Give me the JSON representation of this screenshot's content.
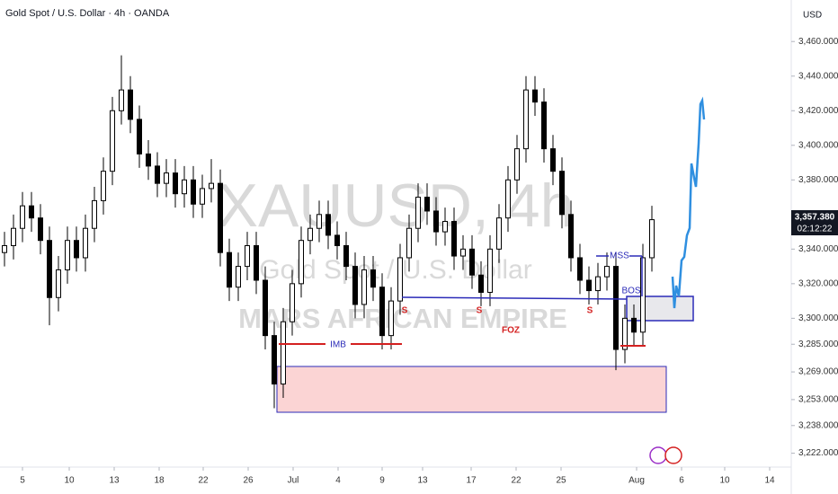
{
  "chart_data": {
    "type": "candlestick",
    "title": "Gold Spot / U.S. Dollar · 4h · OANDA",
    "currency": "USD",
    "watermark": {
      "symbol": "XAUUSD, 4h",
      "name": "Gold Spot / U.S. Dollar",
      "author": "MARS AFRICAN EMPIRE"
    },
    "annotations": {
      "imb": "IMB",
      "mss": "MSS",
      "bos": "BOS",
      "s": [
        "S",
        "S",
        "S"
      ],
      "foz": "FOZ"
    },
    "last_price_label": "3,357.380",
    "countdown": "02:12:22",
    "color": "#000000",
    "open": [
      3338,
      3342,
      3352,
      3365,
      3358,
      3345,
      3312,
      3328,
      3345,
      3335,
      3352,
      3368,
      3385,
      3420,
      3432,
      3415,
      3395,
      3388,
      3378,
      3384,
      3372,
      3380,
      3366,
      3375,
      3378,
      3338,
      3318,
      3330,
      3342,
      3322,
      3290,
      3262,
      3298,
      3320,
      3345,
      3352,
      3360,
      3348,
      3342,
      3330,
      3308,
      3328,
      3318,
      3290,
      3310,
      3335,
      3352,
      3370,
      3362,
      3350,
      3356,
      3336,
      3340,
      3325,
      3315,
      3340,
      3358,
      3380,
      3398,
      3432,
      3425,
      3398,
      3385,
      3360,
      3335,
      3322,
      3316,
      3324,
      3330,
      3282,
      3300,
      3292,
      3335
    ],
    "high": [
      3350,
      3360,
      3373,
      3373,
      3366,
      3353,
      3336,
      3353,
      3353,
      3360,
      3376,
      3393,
      3428,
      3452,
      3440,
      3423,
      3403,
      3396,
      3392,
      3392,
      3388,
      3388,
      3383,
      3392,
      3386,
      3346,
      3338,
      3350,
      3350,
      3330,
      3298,
      3306,
      3328,
      3353,
      3360,
      3368,
      3368,
      3356,
      3350,
      3338,
      3336,
      3336,
      3326,
      3318,
      3343,
      3360,
      3378,
      3378,
      3370,
      3364,
      3364,
      3348,
      3348,
      3333,
      3348,
      3366,
      3388,
      3406,
      3440,
      3440,
      3433,
      3406,
      3393,
      3368,
      3343,
      3330,
      3332,
      3338,
      3338,
      3308,
      3308,
      3343,
      3365
    ],
    "low": [
      3330,
      3334,
      3344,
      3350,
      3337,
      3296,
      3304,
      3320,
      3327,
      3327,
      3344,
      3360,
      3377,
      3412,
      3407,
      3387,
      3380,
      3370,
      3370,
      3364,
      3364,
      3358,
      3358,
      3367,
      3330,
      3310,
      3310,
      3322,
      3314,
      3282,
      3248,
      3254,
      3290,
      3312,
      3337,
      3344,
      3340,
      3334,
      3322,
      3300,
      3300,
      3310,
      3282,
      3282,
      3302,
      3327,
      3344,
      3354,
      3342,
      3342,
      3328,
      3328,
      3317,
      3307,
      3307,
      3332,
      3350,
      3372,
      3390,
      3417,
      3390,
      3377,
      3352,
      3327,
      3314,
      3308,
      3308,
      3316,
      3270,
      3274,
      3284,
      3284,
      3327
    ],
    "close": [
      3342,
      3352,
      3365,
      3358,
      3345,
      3312,
      3328,
      3345,
      3335,
      3352,
      3368,
      3385,
      3420,
      3432,
      3415,
      3395,
      3388,
      3378,
      3384,
      3372,
      3380,
      3366,
      3375,
      3378,
      3338,
      3318,
      3330,
      3342,
      3322,
      3290,
      3262,
      3298,
      3320,
      3345,
      3352,
      3360,
      3348,
      3342,
      3330,
      3308,
      3328,
      3318,
      3290,
      3310,
      3335,
      3352,
      3370,
      3362,
      3350,
      3356,
      3336,
      3340,
      3325,
      3315,
      3340,
      3358,
      3380,
      3398,
      3432,
      3425,
      3398,
      3385,
      3360,
      3335,
      3322,
      3316,
      3324,
      3330,
      3282,
      3300,
      3292,
      3335,
      3357
    ],
    "xlim": [
      -0.5,
      87.5
    ],
    "xticks": [
      {
        "value": 2,
        "label": "5"
      },
      {
        "value": 7.2,
        "label": "10"
      },
      {
        "value": 12.2,
        "label": "13"
      },
      {
        "value": 17.2,
        "label": "18"
      },
      {
        "value": 22.1,
        "label": "22"
      },
      {
        "value": 27.1,
        "label": "26"
      },
      {
        "value": 32.1,
        "label": "Jul"
      },
      {
        "value": 37.1,
        "label": "4"
      },
      {
        "value": 42,
        "label": "9"
      },
      {
        "value": 46.5,
        "label": "13"
      },
      {
        "value": 51.9,
        "label": "17"
      },
      {
        "value": 56.9,
        "label": "22"
      },
      {
        "value": 61.9,
        "label": "25"
      },
      {
        "value": 70.3,
        "label": "Aug"
      },
      {
        "value": 75.3,
        "label": "6"
      },
      {
        "value": 80.1,
        "label": "10"
      },
      {
        "value": 85.1,
        "label": "14"
      }
    ],
    "ylim": [
      3214,
      3484
    ],
    "yticks": [
      {
        "value": 3460,
        "label": "3,460.000"
      },
      {
        "value": 3440,
        "label": "3,440.000"
      },
      {
        "value": 3420,
        "label": "3,420.000"
      },
      {
        "value": 3400,
        "label": "3,400.000"
      },
      {
        "value": 3380,
        "label": "3,380.000"
      },
      {
        "value": 3340,
        "label": "3,340.000"
      },
      {
        "value": 3320,
        "label": "3,320.000"
      },
      {
        "value": 3300,
        "label": "3,300.000"
      },
      {
        "value": 3285,
        "label": "3,285.000"
      },
      {
        "value": 3269,
        "label": "3,269.000"
      },
      {
        "value": 3253,
        "label": "3,253.000"
      },
      {
        "value": 3238,
        "label": "3,238.000"
      },
      {
        "value": 3222,
        "label": "3,222.000"
      }
    ]
  }
}
